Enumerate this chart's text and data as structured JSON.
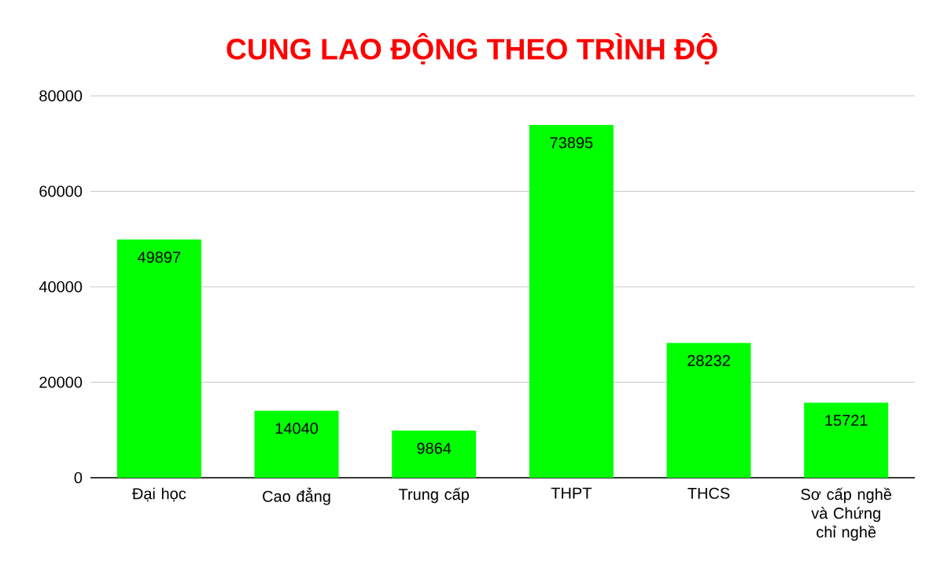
{
  "chart_data": {
    "type": "bar",
    "title": "CUNG LAO ĐỘNG THEO TRÌNH ĐỘ",
    "categories": [
      "Đại học",
      "Cao đẳng",
      "Trung cấp",
      "THPT",
      "THCS",
      "Sơ cấp nghề và Chứng chỉ nghề"
    ],
    "values": [
      49897,
      14040,
      9864,
      73895,
      28232,
      15721
    ],
    "color": "#00ff00",
    "ylim": [
      0,
      80000
    ],
    "yticks": [
      0,
      20000,
      40000,
      60000,
      80000
    ],
    "grid": "y",
    "data_labels": true
  }
}
